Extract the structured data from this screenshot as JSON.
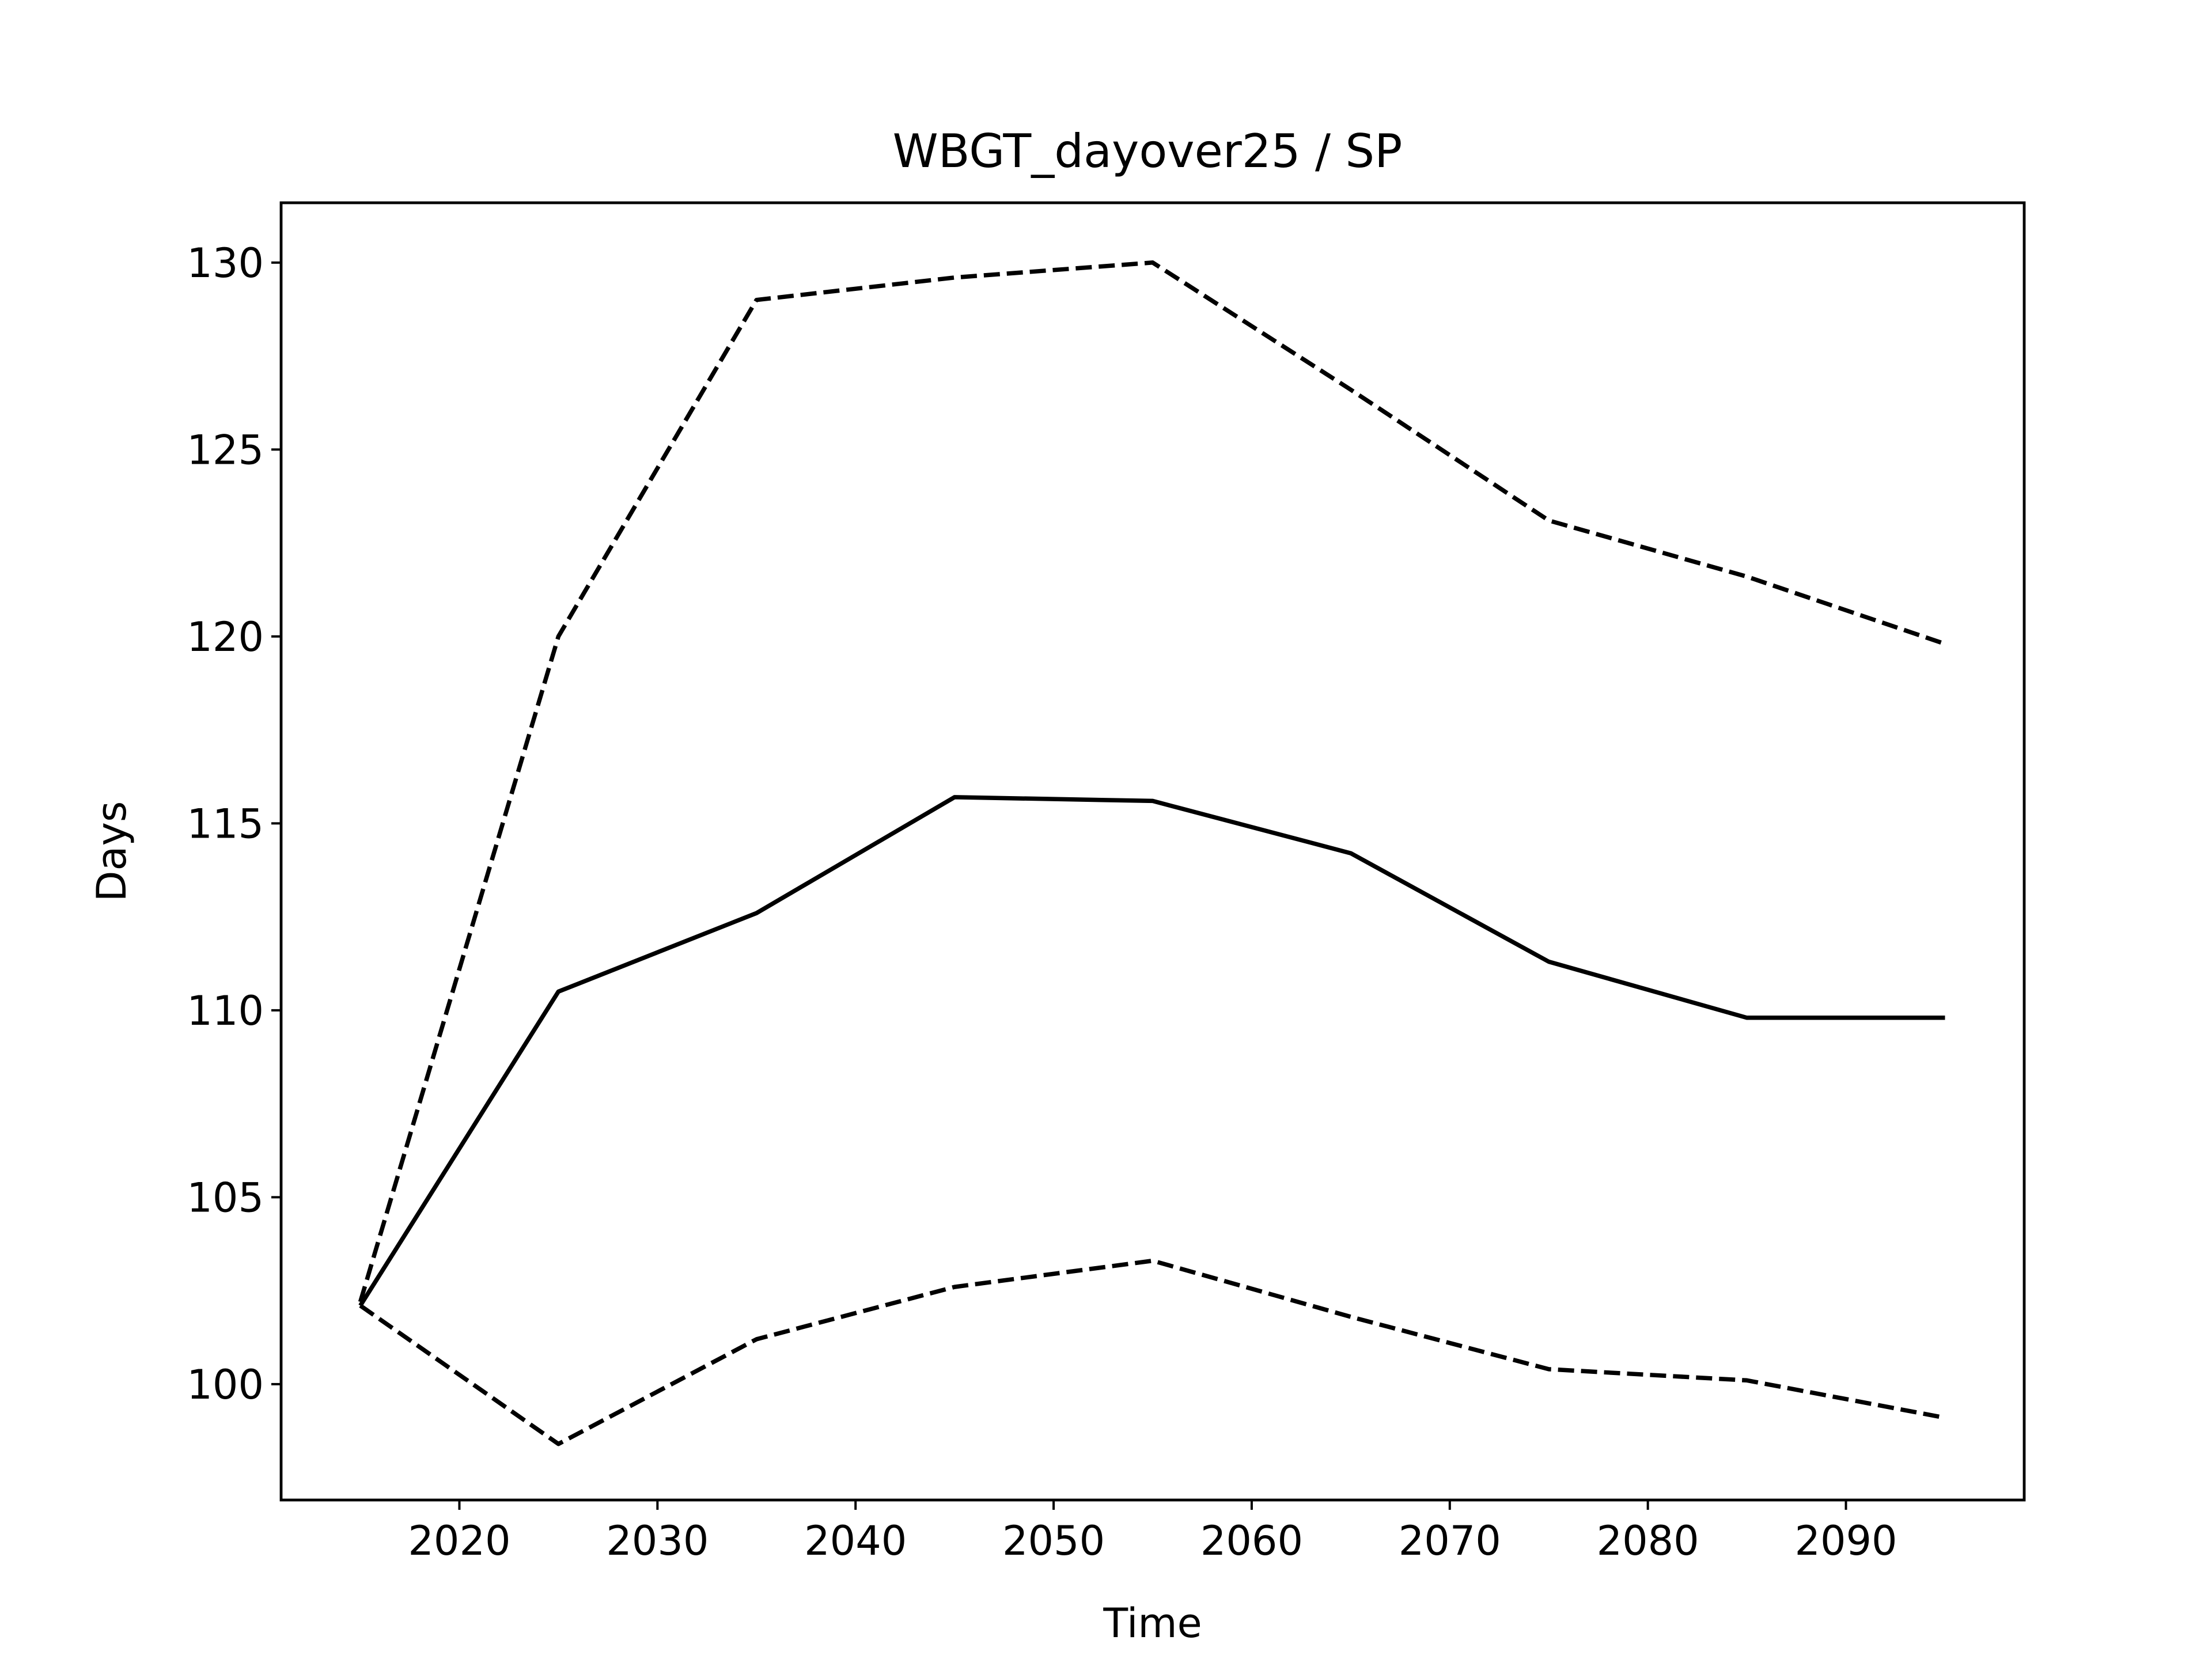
{
  "chart_data": {
    "type": "line",
    "title": "WBGT_dayover25 / SP",
    "xlabel": "Time",
    "ylabel": "Days",
    "xlim": [
      2011,
      2099
    ],
    "ylim": [
      96.9,
      131.6
    ],
    "xticks": [
      2020,
      2030,
      2040,
      2050,
      2060,
      2070,
      2080,
      2090
    ],
    "yticks": [
      100,
      105,
      110,
      115,
      120,
      125,
      130
    ],
    "grid": false,
    "legend": false,
    "x": [
      2015,
      2025,
      2035,
      2045,
      2055,
      2065,
      2075,
      2085,
      2095
    ],
    "series": [
      {
        "style": "solid",
        "color": "#000000",
        "values": [
          102.1,
          110.5,
          112.6,
          115.7,
          115.6,
          114.2,
          111.3,
          109.8,
          109.8
        ]
      },
      {
        "style": "dashed",
        "color": "#000000",
        "values": [
          102.2,
          120.0,
          129.0,
          129.6,
          130.0,
          126.6,
          123.1,
          121.6,
          119.8
        ]
      },
      {
        "style": "dashed",
        "color": "#000000",
        "values": [
          102.1,
          98.4,
          101.2,
          102.6,
          103.3,
          101.8,
          100.4,
          100.1,
          99.1
        ]
      }
    ]
  }
}
